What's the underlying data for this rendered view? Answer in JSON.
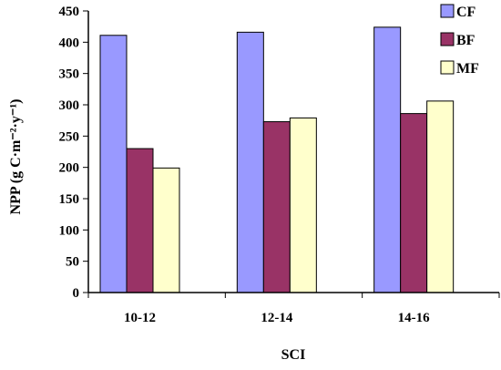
{
  "chart_data": {
    "type": "bar",
    "categories": [
      "10-12",
      "12-14",
      "14-16"
    ],
    "series": [
      {
        "name": "CF",
        "color": "#9999ff",
        "values": [
          411,
          416,
          424
        ]
      },
      {
        "name": "BF",
        "color": "#993366",
        "values": [
          230,
          273,
          286
        ]
      },
      {
        "name": "MF",
        "color": "#ffffcc",
        "values": [
          199,
          279,
          306
        ]
      }
    ],
    "xlabel": "SCI",
    "ylabel": "NPP (g C·m⁻²·y⁻¹)",
    "ylim": [
      0,
      450
    ],
    "yticks": [
      0,
      50,
      100,
      150,
      200,
      250,
      300,
      350,
      400,
      450
    ],
    "grid": false,
    "legend_position": "top-right"
  }
}
